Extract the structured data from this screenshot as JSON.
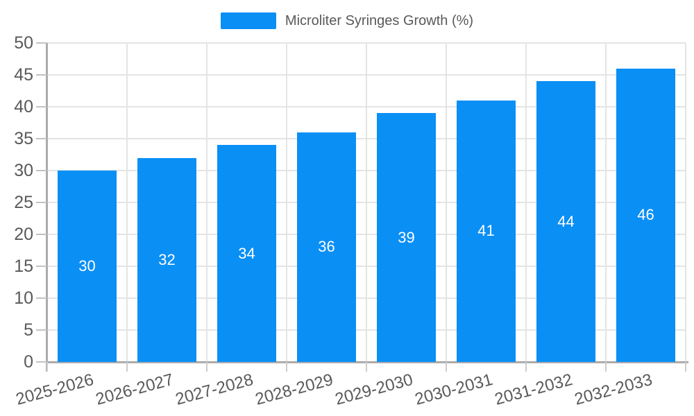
{
  "chart_data": {
    "type": "bar",
    "title": "Microliter Syringes Growth (%)",
    "categories": [
      "2025-2026",
      "2026-2027",
      "2027-2028",
      "2028-2029",
      "2029-2030",
      "2030-2031",
      "2031-2032",
      "2032-2033"
    ],
    "values": [
      30,
      32,
      34,
      36,
      39,
      41,
      44,
      46
    ],
    "xlabel": "",
    "ylabel": "",
    "ylim": [
      0,
      50
    ],
    "yticks": [
      0,
      5,
      10,
      15,
      20,
      25,
      30,
      35,
      40,
      45,
      50
    ],
    "grid": "on",
    "legend_position": "top-center",
    "bar_labels_inside": true
  },
  "colors": {
    "bar": "#0a8ff5",
    "bar_label": "#ffffff",
    "axis_text": "#595959",
    "legend_text": "#595959",
    "axis_line": "#ababab",
    "grid_line": "#e4e4e4",
    "background": "#ffffff"
  }
}
